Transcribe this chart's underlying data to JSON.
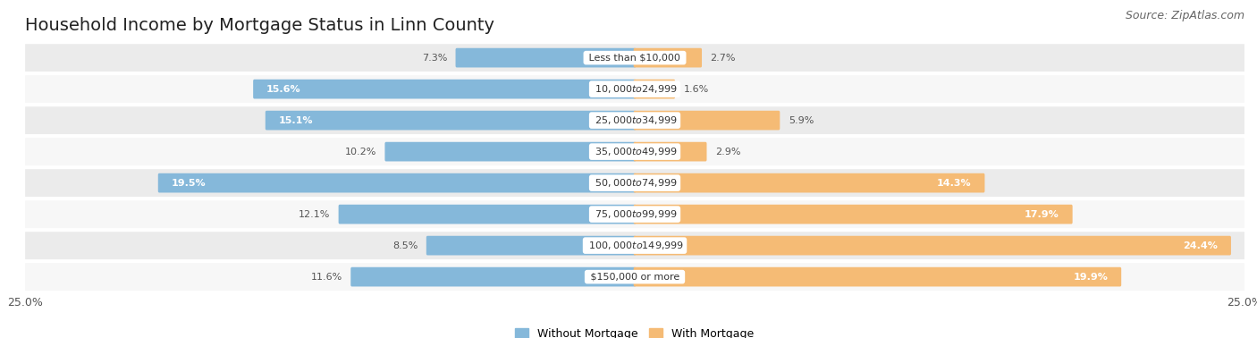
{
  "title": "Household Income by Mortgage Status in Linn County",
  "source": "Source: ZipAtlas.com",
  "categories": [
    "Less than $10,000",
    "$10,000 to $24,999",
    "$25,000 to $34,999",
    "$35,000 to $49,999",
    "$50,000 to $74,999",
    "$75,000 to $99,999",
    "$100,000 to $149,999",
    "$150,000 or more"
  ],
  "without_mortgage": [
    7.3,
    15.6,
    15.1,
    10.2,
    19.5,
    12.1,
    8.5,
    11.6
  ],
  "with_mortgage": [
    2.7,
    1.6,
    5.9,
    2.9,
    14.3,
    17.9,
    24.4,
    19.9
  ],
  "blue_color": "#85b8da",
  "orange_color": "#f5bb75",
  "row_bg_even": "#ebebeb",
  "row_bg_odd": "#f7f7f7",
  "axis_max": 25.0,
  "title_fontsize": 14,
  "label_fontsize": 8.0,
  "tick_fontsize": 9,
  "source_fontsize": 9,
  "legend_fontsize": 9,
  "pct_inside_threshold": 13.0
}
